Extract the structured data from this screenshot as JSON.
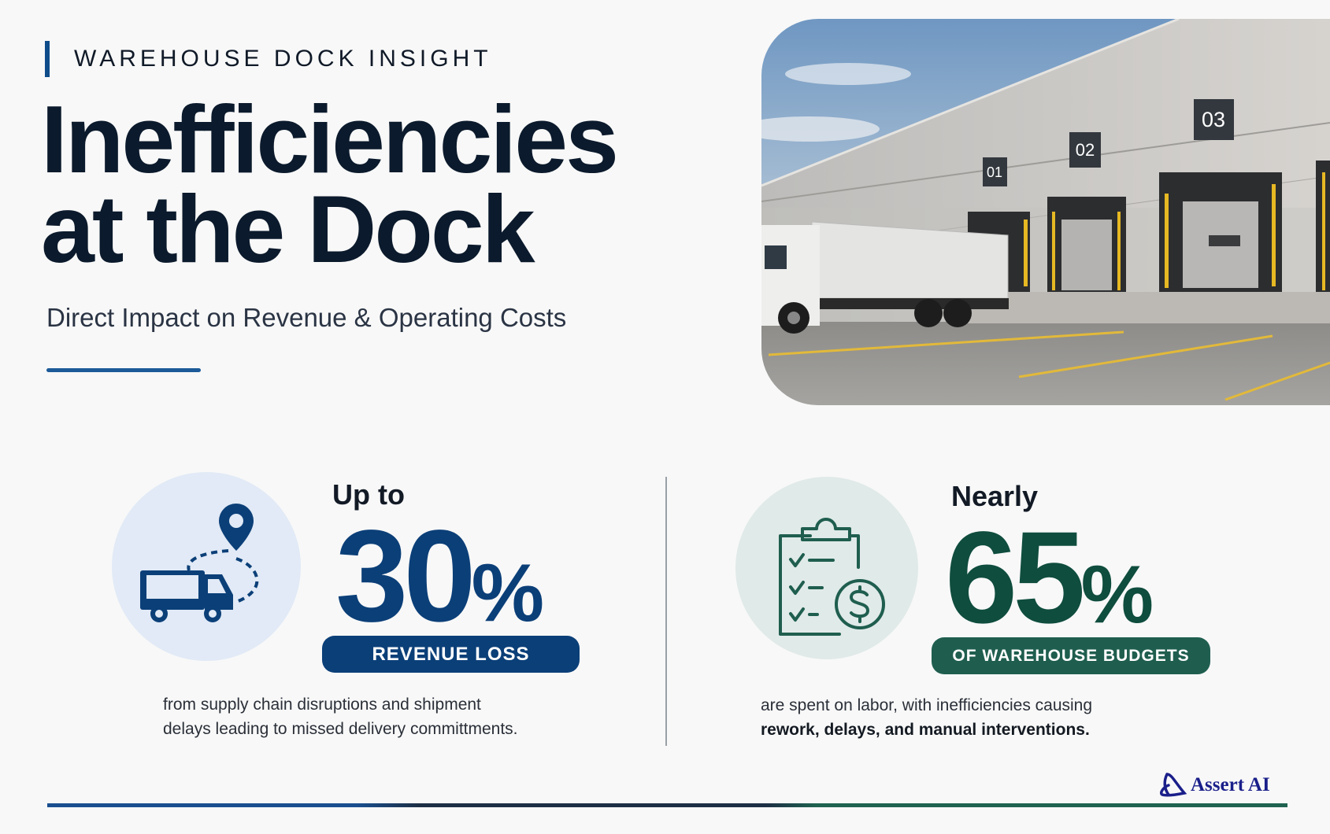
{
  "header": {
    "eyebrow": "WAREHOUSE DOCK INSIGHT",
    "title_line1": "Inefficiencies",
    "title_line2": "at the Dock",
    "subtitle": "Direct Impact on Revenue & Operating Costs"
  },
  "photo": {
    "dock_numbers": [
      "01",
      "02",
      "03"
    ]
  },
  "stats": [
    {
      "lead": "Up to",
      "value": "30",
      "unit": "%",
      "badge": "REVENUE LOSS",
      "desc_line1": "from supply chain disruptions and shipment",
      "desc_line2": "delays leading to missed delivery committments.",
      "icon": "truck-route-icon",
      "color": "#0b3f78"
    },
    {
      "lead": "Nearly",
      "value": "65",
      "unit": "%",
      "badge": "OF WAREHOUSE BUDGETS",
      "desc_line1": "are spent on labor, with inefficiencies causing",
      "desc_line2": "rework, delays, and manual interventions.",
      "icon": "clipboard-dollar-icon",
      "color": "#0f4d3e"
    }
  ],
  "brand": {
    "logo_text": "Assert AI",
    "accent_blue": "#1a4f8f",
    "accent_green": "#1f6350"
  }
}
